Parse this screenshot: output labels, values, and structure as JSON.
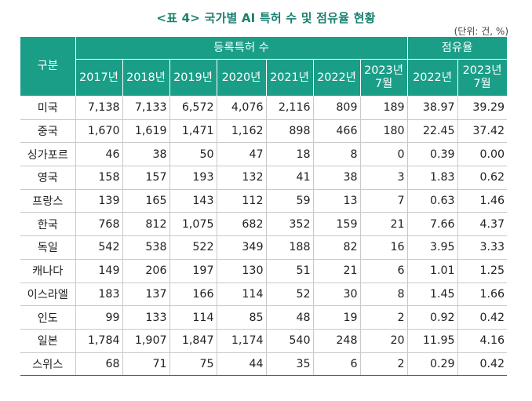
{
  "title": "<표 4> 국가별 AI 특허 수 및 점유율 현황",
  "unit": "(단위: 건, %)",
  "table": {
    "corner_header": "구분",
    "group_patents": "등록특허 수",
    "group_share": "점유율",
    "patent_years": [
      "2017년",
      "2018년",
      "2019년",
      "2020년",
      "2021년",
      "2022년",
      "2023년\n7월"
    ],
    "share_years": [
      "2022년",
      "2023년\n7월"
    ],
    "rows": [
      {
        "country": "미국",
        "cells": [
          "7,138",
          "7,133",
          "6,572",
          "4,076",
          "2,116",
          "809",
          "189",
          "38.97",
          "39.29"
        ]
      },
      {
        "country": "중국",
        "cells": [
          "1,670",
          "1,619",
          "1,471",
          "1,162",
          "898",
          "466",
          "180",
          "22.45",
          "37.42"
        ]
      },
      {
        "country": "싱가포르",
        "cells": [
          "46",
          "38",
          "50",
          "47",
          "18",
          "8",
          "0",
          "0.39",
          "0.00"
        ]
      },
      {
        "country": "영국",
        "cells": [
          "158",
          "157",
          "193",
          "132",
          "41",
          "38",
          "3",
          "1.83",
          "0.62"
        ]
      },
      {
        "country": "프랑스",
        "cells": [
          "139",
          "165",
          "143",
          "112",
          "59",
          "13",
          "7",
          "0.63",
          "1.46"
        ]
      },
      {
        "country": "한국",
        "cells": [
          "768",
          "812",
          "1,075",
          "682",
          "352",
          "159",
          "21",
          "7.66",
          "4.37"
        ]
      },
      {
        "country": "독일",
        "cells": [
          "542",
          "538",
          "522",
          "349",
          "188",
          "82",
          "16",
          "3.95",
          "3.33"
        ]
      },
      {
        "country": "캐나다",
        "cells": [
          "149",
          "206",
          "197",
          "130",
          "51",
          "21",
          "6",
          "1.01",
          "1.25"
        ]
      },
      {
        "country": "이스라엘",
        "cells": [
          "183",
          "137",
          "166",
          "114",
          "52",
          "30",
          "8",
          "1.45",
          "1.66"
        ]
      },
      {
        "country": "인도",
        "cells": [
          "99",
          "133",
          "114",
          "85",
          "48",
          "19",
          "2",
          "0.92",
          "0.42"
        ]
      },
      {
        "country": "일본",
        "cells": [
          "1,784",
          "1,907",
          "1,847",
          "1,174",
          "540",
          "248",
          "20",
          "11.95",
          "4.16"
        ]
      },
      {
        "country": "스위스",
        "cells": [
          "68",
          "71",
          "75",
          "44",
          "35",
          "6",
          "2",
          "0.29",
          "0.42"
        ]
      }
    ]
  },
  "colors": {
    "header_bg": "#1a9e87",
    "title_color": "#19806f"
  }
}
